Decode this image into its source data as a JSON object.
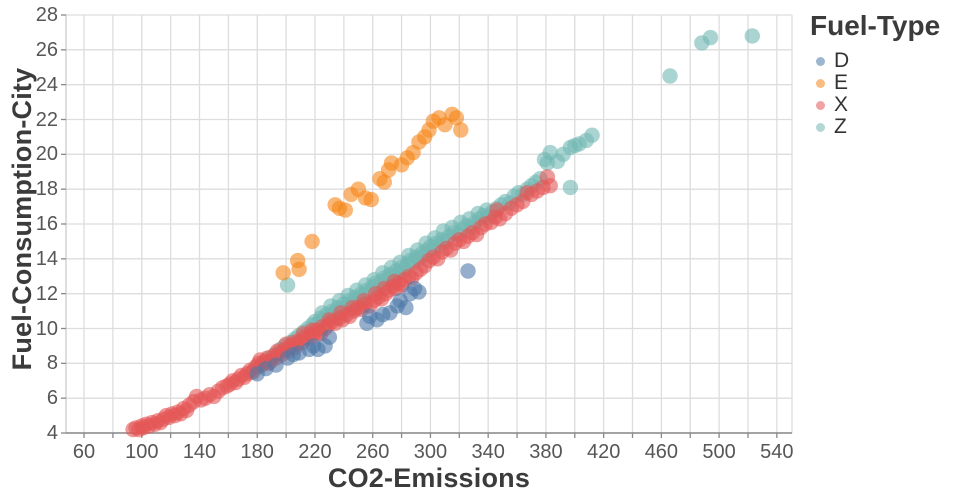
{
  "chart_data": {
    "type": "scatter",
    "xlabel": "CO2-Emissions",
    "ylabel": "Fuel-Consumption-City",
    "legend_title": "Fuel-Type",
    "legend_position": "right-top-outside",
    "grid": true,
    "xlim": [
      47.5,
      550.5
    ],
    "ylim": [
      4,
      28
    ],
    "x_ticks": [
      60,
      80,
      100,
      120,
      140,
      160,
      180,
      200,
      220,
      240,
      260,
      280,
      300,
      320,
      340,
      360,
      380,
      400,
      420,
      440,
      460,
      480,
      500,
      520,
      540
    ],
    "x_tick_labels": [
      60,
      100,
      140,
      180,
      220,
      260,
      300,
      340,
      380,
      420,
      460,
      500,
      540
    ],
    "y_ticks": [
      4,
      6,
      8,
      10,
      12,
      14,
      16,
      18,
      20,
      22,
      24,
      26,
      28
    ],
    "marker": {
      "radius": 7.7,
      "opacity": 0.6
    },
    "colors": {
      "grid": "#dddddd",
      "axis_line": "#888888",
      "tick": "#888888",
      "tick_label": "#565656",
      "title": "#3b3b3b"
    },
    "series": [
      {
        "name": "D",
        "color": "#4c78a8",
        "points": [
          [
            180,
            7.4
          ],
          [
            186,
            7.7
          ],
          [
            193,
            7.9
          ],
          [
            201,
            8.3
          ],
          [
            205,
            8.5
          ],
          [
            209,
            8.6
          ],
          [
            216,
            8.8
          ],
          [
            219,
            9.0
          ],
          [
            222,
            8.8
          ],
          [
            227,
            9.0
          ],
          [
            230,
            9.5
          ],
          [
            256,
            10.3
          ],
          [
            258,
            10.7
          ],
          [
            263,
            10.5
          ],
          [
            267,
            10.8
          ],
          [
            272,
            10.9
          ],
          [
            277,
            11.3
          ],
          [
            279,
            11.6
          ],
          [
            283,
            11.2
          ],
          [
            286,
            12.0
          ],
          [
            289,
            12.3
          ],
          [
            292,
            12.1
          ],
          [
            326,
            13.3
          ]
        ]
      },
      {
        "name": "E",
        "color": "#f58518",
        "points": [
          [
            198,
            13.2
          ],
          [
            208,
            13.9
          ],
          [
            209,
            13.4
          ],
          [
            218,
            15.0
          ],
          [
            234,
            17.1
          ],
          [
            237,
            16.9
          ],
          [
            241,
            16.8
          ],
          [
            245,
            17.7
          ],
          [
            250,
            18.0
          ],
          [
            255,
            17.5
          ],
          [
            259,
            17.4
          ],
          [
            265,
            18.6
          ],
          [
            268,
            18.4
          ],
          [
            271,
            19.1
          ],
          [
            273,
            19.5
          ],
          [
            280,
            19.4
          ],
          [
            284,
            19.8
          ],
          [
            288,
            20.1
          ],
          [
            292,
            20.7
          ],
          [
            296,
            21.0
          ],
          [
            299,
            21.4
          ],
          [
            302,
            21.9
          ],
          [
            306,
            22.1
          ],
          [
            310,
            21.7
          ],
          [
            315,
            22.3
          ],
          [
            318,
            22.1
          ],
          [
            321,
            21.4
          ]
        ]
      },
      {
        "name": "X",
        "color": "#e45756",
        "points": [
          [
            94,
            4.2
          ],
          [
            96,
            4.3
          ],
          [
            98,
            4.2
          ],
          [
            100,
            4.4
          ],
          [
            101,
            4.3
          ],
          [
            103,
            4.5
          ],
          [
            105,
            4.4
          ],
          [
            107,
            4.6
          ],
          [
            109,
            4.5
          ],
          [
            111,
            4.7
          ],
          [
            113,
            4.6
          ],
          [
            115,
            4.8
          ],
          [
            117,
            5.0
          ],
          [
            119,
            4.9
          ],
          [
            121,
            5.1
          ],
          [
            123,
            5.0
          ],
          [
            125,
            5.2
          ],
          [
            127,
            5.1
          ],
          [
            129,
            5.4
          ],
          [
            131,
            5.3
          ],
          [
            133,
            5.6
          ],
          [
            136,
            5.8
          ],
          [
            138,
            6.1
          ],
          [
            141,
            5.9
          ],
          [
            144,
            6.0
          ],
          [
            147,
            6.2
          ],
          [
            150,
            6.1
          ],
          [
            153,
            6.4
          ],
          [
            156,
            6.6
          ],
          [
            159,
            6.7
          ],
          [
            161,
            6.8
          ],
          [
            163,
            7.0
          ],
          [
            165,
            6.9
          ],
          [
            167,
            7.1
          ],
          [
            169,
            7.3
          ],
          [
            171,
            7.2
          ],
          [
            173,
            7.4
          ],
          [
            175,
            7.6
          ],
          [
            177,
            7.5
          ],
          [
            179,
            7.8
          ],
          [
            181,
            8.0
          ],
          [
            183,
            7.9
          ],
          [
            185,
            8.1
          ],
          [
            187,
            8.3
          ],
          [
            189,
            8.1
          ],
          [
            191,
            8.4
          ],
          [
            193,
            8.3
          ],
          [
            195,
            8.6
          ],
          [
            197,
            8.5
          ],
          [
            199,
            8.8
          ],
          [
            201,
            8.7
          ],
          [
            203,
            9.0
          ],
          [
            205,
            9.2
          ],
          [
            207,
            9.1
          ],
          [
            209,
            9.3
          ],
          [
            211,
            9.2
          ],
          [
            213,
            9.5
          ],
          [
            215,
            9.4
          ],
          [
            217,
            9.7
          ],
          [
            219,
            9.6
          ],
          [
            221,
            9.9
          ],
          [
            223,
            9.8
          ],
          [
            225,
            10.1
          ],
          [
            227,
            10.0
          ],
          [
            229,
            10.2
          ],
          [
            232,
            10.4
          ],
          [
            234,
            10.3
          ],
          [
            237,
            10.6
          ],
          [
            239,
            10.5
          ],
          [
            242,
            10.8
          ],
          [
            244,
            10.7
          ],
          [
            247,
            11.0
          ],
          [
            250,
            11.2
          ],
          [
            252,
            11.1
          ],
          [
            255,
            11.4
          ],
          [
            258,
            11.3
          ],
          [
            261,
            11.6
          ],
          [
            264,
            11.8
          ],
          [
            266,
            11.7
          ],
          [
            269,
            12.0
          ],
          [
            271,
            12.2
          ],
          [
            274,
            12.4
          ],
          [
            276,
            12.3
          ],
          [
            278,
            12.6
          ],
          [
            280,
            12.5
          ],
          [
            282,
            12.8
          ],
          [
            285,
            13.0
          ],
          [
            287,
            12.9
          ],
          [
            290,
            13.2
          ],
          [
            293,
            13.4
          ],
          [
            296,
            13.6
          ],
          [
            299,
            13.9
          ],
          [
            302,
            14.1
          ],
          [
            305,
            14.0
          ],
          [
            308,
            14.4
          ],
          [
            311,
            14.6
          ],
          [
            314,
            14.5
          ],
          [
            317,
            14.9
          ],
          [
            320,
            15.1
          ],
          [
            323,
            15.0
          ],
          [
            326,
            15.3
          ],
          [
            329,
            15.5
          ],
          [
            332,
            15.4
          ],
          [
            335,
            15.8
          ],
          [
            338,
            16.0
          ],
          [
            342,
            16.1
          ],
          [
            345,
            16.4
          ],
          [
            346,
            16.8
          ],
          [
            348,
            16.3
          ],
          [
            352,
            16.6
          ],
          [
            356,
            16.9
          ],
          [
            360,
            17.1
          ],
          [
            364,
            17.3
          ],
          [
            367,
            17.8
          ],
          [
            370,
            17.7
          ],
          [
            374,
            17.9
          ],
          [
            378,
            18.1
          ],
          [
            381,
            18.7
          ],
          [
            383,
            18.2
          ],
          [
            182,
            8.2
          ],
          [
            188,
            8.0
          ],
          [
            194,
            8.7
          ],
          [
            200,
            9.1
          ],
          [
            206,
            8.9
          ],
          [
            212,
            9.7
          ],
          [
            218,
            9.9
          ],
          [
            224,
            9.7
          ],
          [
            230,
            10.5
          ],
          [
            238,
            10.9
          ],
          [
            246,
            11.2
          ],
          [
            254,
            11.6
          ],
          [
            262,
            12.0
          ],
          [
            268,
            12.3
          ],
          [
            275,
            12.7
          ]
        ]
      },
      {
        "name": "Z",
        "color": "#72b7b2",
        "points": [
          [
            176,
            7.5
          ],
          [
            180,
            7.8
          ],
          [
            184,
            8.0
          ],
          [
            188,
            8.3
          ],
          [
            192,
            8.5
          ],
          [
            196,
            8.8
          ],
          [
            199,
            9.0
          ],
          [
            203,
            9.2
          ],
          [
            206,
            9.4
          ],
          [
            209,
            9.6
          ],
          [
            212,
            9.8
          ],
          [
            215,
            10.0
          ],
          [
            218,
            10.2
          ],
          [
            220,
            10.4
          ],
          [
            222,
            10.3
          ],
          [
            224,
            10.6
          ],
          [
            226,
            10.5
          ],
          [
            228,
            10.8
          ],
          [
            230,
            10.7
          ],
          [
            232,
            11.0
          ],
          [
            234,
            10.9
          ],
          [
            236,
            11.2
          ],
          [
            238,
            11.1
          ],
          [
            240,
            11.4
          ],
          [
            242,
            11.3
          ],
          [
            244,
            11.6
          ],
          [
            246,
            11.5
          ],
          [
            248,
            11.8
          ],
          [
            250,
            11.7
          ],
          [
            252,
            12.0
          ],
          [
            254,
            11.9
          ],
          [
            256,
            12.2
          ],
          [
            258,
            12.1
          ],
          [
            260,
            12.4
          ],
          [
            262,
            12.6
          ],
          [
            264,
            12.3
          ],
          [
            266,
            12.7
          ],
          [
            268,
            12.9
          ],
          [
            270,
            12.8
          ],
          [
            272,
            13.1
          ],
          [
            274,
            13.0
          ],
          [
            276,
            13.3
          ],
          [
            278,
            13.2
          ],
          [
            280,
            13.5
          ],
          [
            282,
            13.4
          ],
          [
            284,
            13.7
          ],
          [
            286,
            13.9
          ],
          [
            288,
            13.8
          ],
          [
            290,
            14.1
          ],
          [
            292,
            14.0
          ],
          [
            294,
            14.3
          ],
          [
            296,
            14.2
          ],
          [
            298,
            14.5
          ],
          [
            300,
            14.7
          ],
          [
            302,
            14.6
          ],
          [
            304,
            14.9
          ],
          [
            306,
            14.8
          ],
          [
            308,
            15.1
          ],
          [
            310,
            15.0
          ],
          [
            313,
            15.3
          ],
          [
            316,
            15.5
          ],
          [
            319,
            15.4
          ],
          [
            322,
            15.7
          ],
          [
            325,
            15.9
          ],
          [
            328,
            15.8
          ],
          [
            331,
            16.1
          ],
          [
            334,
            16.3
          ],
          [
            337,
            16.5
          ],
          [
            340,
            16.4
          ],
          [
            343,
            16.7
          ],
          [
            346,
            16.9
          ],
          [
            349,
            17.1
          ],
          [
            352,
            17.3
          ],
          [
            355,
            17.2
          ],
          [
            358,
            17.6
          ],
          [
            361,
            17.8
          ],
          [
            364,
            17.7
          ],
          [
            367,
            18.0
          ],
          [
            370,
            18.2
          ],
          [
            373,
            18.4
          ],
          [
            376,
            18.6
          ],
          [
            379,
            19.7
          ],
          [
            381,
            19.5
          ],
          [
            383,
            20.1
          ],
          [
            388,
            19.6
          ],
          [
            392,
            20.0
          ],
          [
            397,
            20.4
          ],
          [
            400,
            20.5
          ],
          [
            403,
            20.6
          ],
          [
            408,
            20.8
          ],
          [
            412,
            21.1
          ],
          [
            225,
            10.9
          ],
          [
            231,
            11.3
          ],
          [
            237,
            11.6
          ],
          [
            243,
            11.9
          ],
          [
            249,
            12.2
          ],
          [
            255,
            12.5
          ],
          [
            261,
            12.8
          ],
          [
            267,
            13.2
          ],
          [
            273,
            13.5
          ],
          [
            279,
            13.8
          ],
          [
            285,
            14.2
          ],
          [
            291,
            14.5
          ],
          [
            297,
            14.9
          ],
          [
            303,
            15.2
          ],
          [
            309,
            15.6
          ],
          [
            315,
            15.8
          ],
          [
            321,
            16.1
          ],
          [
            327,
            16.3
          ],
          [
            333,
            16.6
          ],
          [
            339,
            16.8
          ],
          [
            235,
            10.6
          ],
          [
            247,
            11.1
          ],
          [
            253,
            11.3
          ],
          [
            201,
            12.5
          ],
          [
            397,
            18.1
          ],
          [
            466,
            24.5
          ],
          [
            488,
            26.4
          ],
          [
            494,
            26.7
          ],
          [
            523,
            26.8
          ]
        ]
      }
    ]
  }
}
